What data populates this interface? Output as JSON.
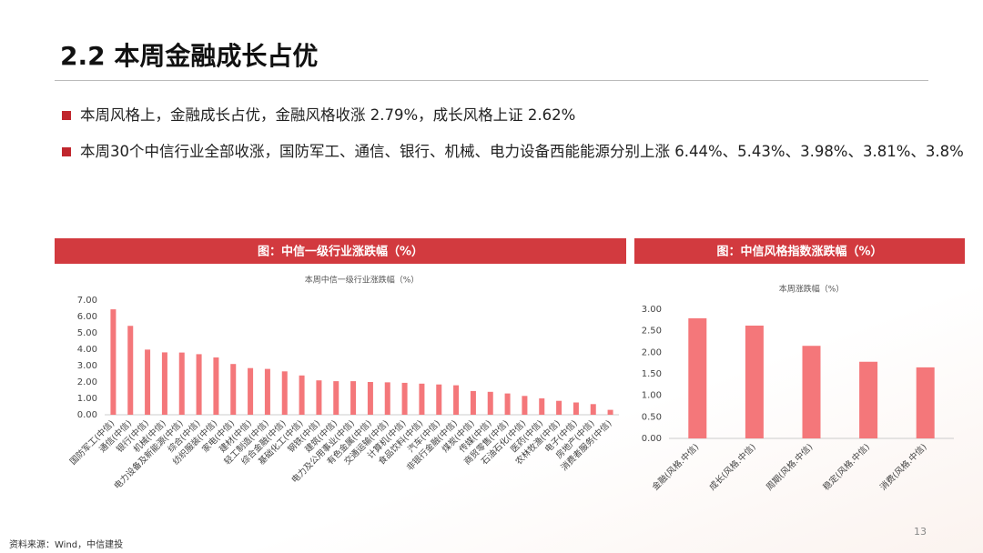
{
  "header": {
    "title": "2.2 本周金融成长占优"
  },
  "bullets": [
    "本周风格上，金融成长占优，金融风格收涨 2.79%，成长风格上证 2.62%",
    "本周30个中信行业全部收涨，国防军工、通信、银行、机械、电力设备西能能源分别上涨 6.44%、5.43%、3.98%、3.81%、3.8%"
  ],
  "source": "资料来源：Wind，中信建投",
  "page_number": "13",
  "chart_data": [
    {
      "type": "bar",
      "caption": "图：中信一级行业涨跌幅（%）",
      "title": "本周中信一级行业涨跌幅（%）",
      "color": "#f4777a",
      "categories": [
        "国防军工(中信)",
        "通信(中信)",
        "银行(中信)",
        "机械(中信)",
        "电力设备及新能源(中信)",
        "综合(中信)",
        "纺织服装(中信)",
        "家电(中信)",
        "建材(中信)",
        "轻工制造(中信)",
        "综合金融(中信)",
        "基础化工(中信)",
        "钢铁(中信)",
        "建筑(中信)",
        "电力及公用事业(中信)",
        "有色金属(中信)",
        "交通运输(中信)",
        "计算机(中信)",
        "食品饮料(中信)",
        "汽车(中信)",
        "非银行金融(中信)",
        "煤炭(中信)",
        "传媒(中信)",
        "商贸零售(中信)",
        "石油石化(中信)",
        "医药(中信)",
        "农林牧渔(中信)",
        "电子(中信)",
        "房地产(中信)",
        "消费者服务(中信)"
      ],
      "values": [
        6.44,
        5.43,
        3.98,
        3.81,
        3.8,
        3.7,
        3.5,
        3.1,
        2.85,
        2.8,
        2.65,
        2.4,
        2.1,
        2.05,
        2.05,
        2.0,
        1.98,
        1.95,
        1.9,
        1.85,
        1.8,
        1.45,
        1.4,
        1.3,
        1.15,
        1.0,
        0.85,
        0.75,
        0.65,
        0.3
      ],
      "ylim": [
        0,
        7
      ],
      "yticks": [
        {
          "value": 0,
          "label": "0.00"
        },
        {
          "value": 1,
          "label": "1.00"
        },
        {
          "value": 2,
          "label": "2.00"
        },
        {
          "value": 3,
          "label": "3.00"
        },
        {
          "value": 4,
          "label": "4.00"
        },
        {
          "value": 5,
          "label": "5.00"
        },
        {
          "value": 6,
          "label": "6.00"
        },
        {
          "value": 7,
          "label": "7.00"
        }
      ],
      "grid": false
    },
    {
      "type": "bar",
      "caption": "图：中信风格指数涨跌幅（%）",
      "title": "本周涨跌幅（%）",
      "color": "#f4777a",
      "categories": [
        "金融(风格.中信)",
        "成长(风格.中信)",
        "周期(风格.中信)",
        "稳定(风格.中信)",
        "消费(风格.中信)"
      ],
      "values": [
        2.79,
        2.62,
        2.15,
        1.78,
        1.65
      ],
      "ylim": [
        0,
        3
      ],
      "yticks": [
        {
          "value": 0,
          "label": "0.00"
        },
        {
          "value": 0.5,
          "label": "0.50"
        },
        {
          "value": 1,
          "label": "1.00"
        },
        {
          "value": 1.5,
          "label": "1.50"
        },
        {
          "value": 2,
          "label": "2.00"
        },
        {
          "value": 2.5,
          "label": "2.50"
        },
        {
          "value": 3,
          "label": "3.00"
        }
      ],
      "grid": false
    }
  ]
}
